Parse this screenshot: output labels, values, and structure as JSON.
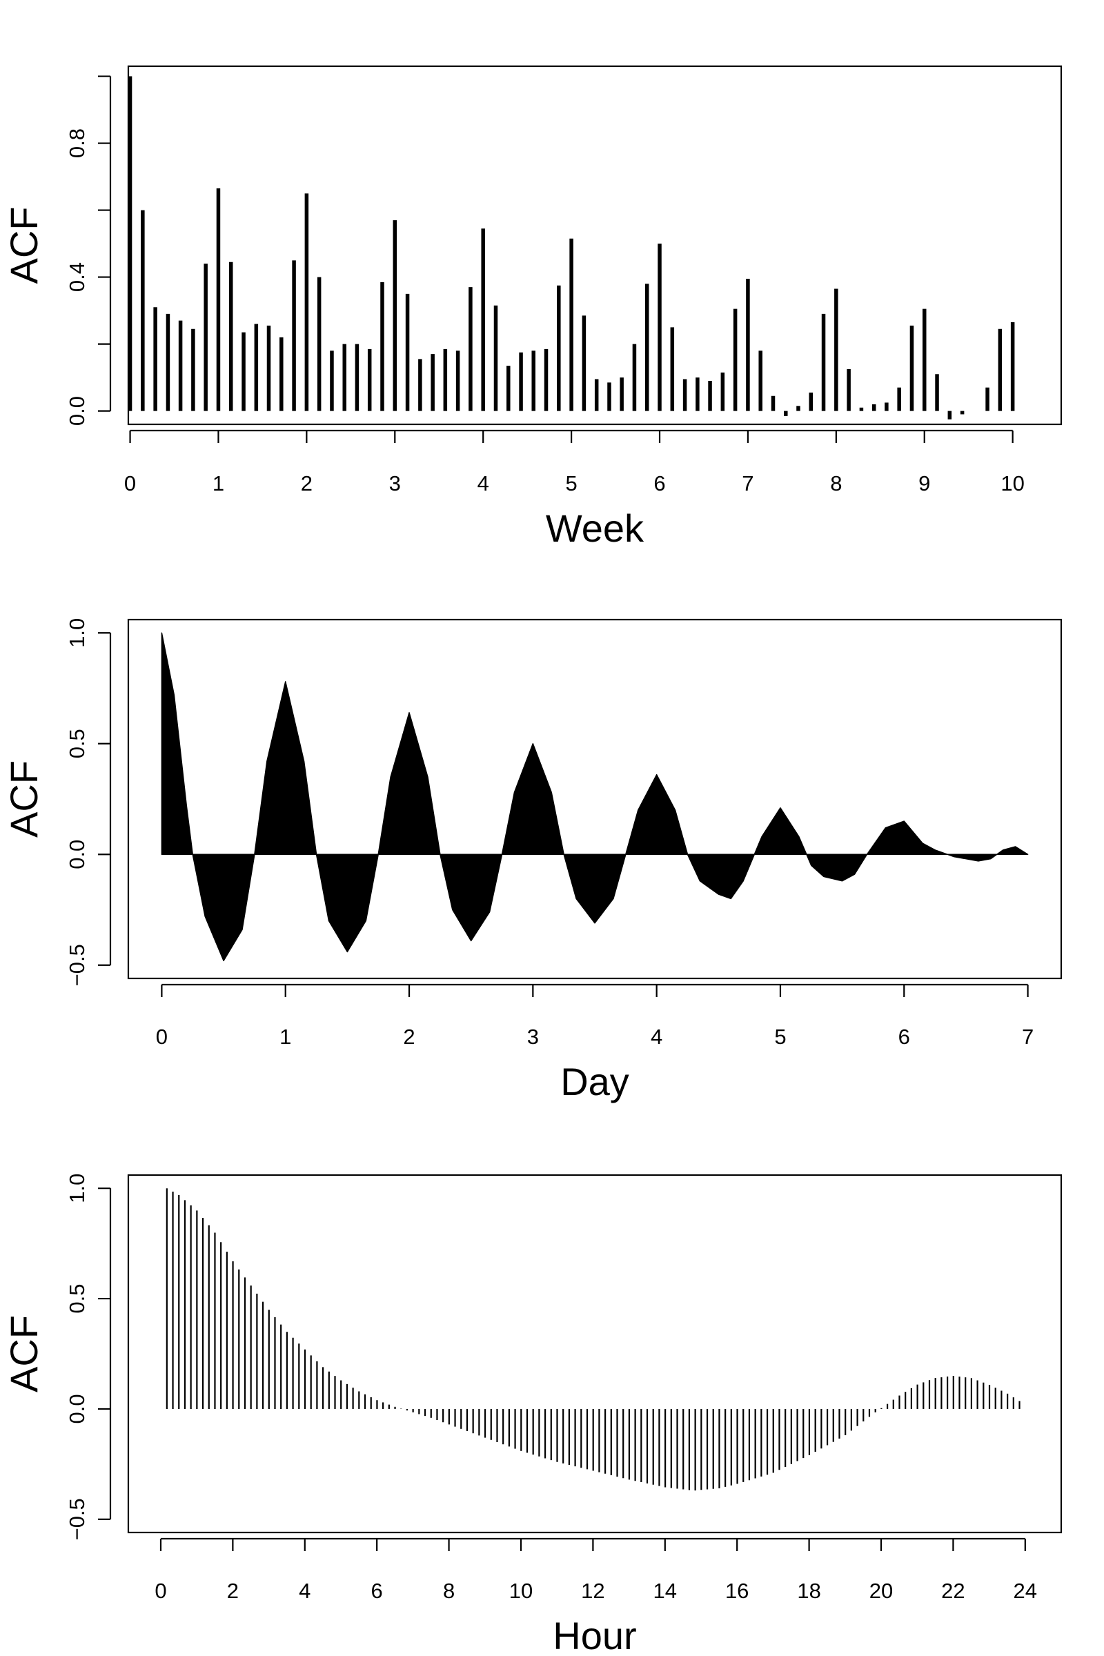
{
  "chart_data": [
    {
      "type": "bar",
      "style": "acf-spikes",
      "title": "",
      "xlabel": "Week",
      "ylabel": "ACF",
      "xlim": [
        -0.02,
        10.55
      ],
      "ylim": [
        -0.04,
        1.03
      ],
      "xticks": [
        0,
        1,
        2,
        3,
        4,
        5,
        6,
        7,
        8,
        9,
        10
      ],
      "xtick_labels": [
        "0",
        "1",
        "2",
        "3",
        "4",
        "5",
        "6",
        "7",
        "8",
        "9",
        "10"
      ],
      "yticks": [
        0.0,
        0.2,
        0.4,
        0.6,
        0.8,
        1.0
      ],
      "ytick_labels": [
        "0.0",
        "",
        "0.4",
        "",
        "0.8",
        ""
      ],
      "x": [
        0,
        0.143,
        0.286,
        0.429,
        0.571,
        0.714,
        0.857,
        1,
        1.143,
        1.286,
        1.429,
        1.571,
        1.714,
        1.857,
        2,
        2.143,
        2.286,
        2.429,
        2.571,
        2.714,
        2.857,
        3,
        3.143,
        3.286,
        3.429,
        3.571,
        3.714,
        3.857,
        4,
        4.143,
        4.286,
        4.429,
        4.571,
        4.714,
        4.857,
        5,
        5.143,
        5.286,
        5.429,
        5.571,
        5.714,
        5.857,
        6,
        6.143,
        6.286,
        6.429,
        6.571,
        6.714,
        6.857,
        7,
        7.143,
        7.286,
        7.429,
        7.571,
        7.714,
        7.857,
        8,
        8.143,
        8.286,
        8.429,
        8.571,
        8.714,
        8.857,
        9,
        9.143,
        9.286,
        9.429,
        9.571,
        9.714,
        9.857,
        10
      ],
      "values": [
        1.0,
        0.6,
        0.31,
        0.29,
        0.27,
        0.245,
        0.44,
        0.665,
        0.445,
        0.235,
        0.26,
        0.255,
        0.22,
        0.45,
        0.65,
        0.4,
        0.18,
        0.2,
        0.2,
        0.185,
        0.385,
        0.57,
        0.35,
        0.155,
        0.17,
        0.185,
        0.18,
        0.37,
        0.545,
        0.315,
        0.135,
        0.175,
        0.18,
        0.185,
        0.375,
        0.515,
        0.285,
        0.095,
        0.085,
        0.1,
        0.2,
        0.38,
        0.5,
        0.25,
        0.095,
        0.1,
        0.09,
        0.115,
        0.305,
        0.395,
        0.18,
        0.045,
        -0.015,
        0.015,
        0.055,
        0.29,
        0.365,
        0.125,
        0.01,
        0.02,
        0.025,
        0.07,
        0.255,
        0.305,
        0.11,
        -0.025,
        -0.01,
        0.0,
        0.07,
        0.245,
        0.265
      ]
    },
    {
      "type": "area",
      "style": "acf-filled",
      "title": "",
      "xlabel": "Day",
      "ylabel": "ACF",
      "xlim": [
        -0.27,
        7.27
      ],
      "ylim": [
        -0.56,
        1.06
      ],
      "xticks": [
        0,
        1,
        2,
        3,
        4,
        5,
        6,
        7
      ],
      "xtick_labels": [
        "0",
        "1",
        "2",
        "3",
        "4",
        "5",
        "6",
        "7"
      ],
      "yticks": [
        -0.5,
        0.0,
        0.5,
        1.0
      ],
      "ytick_labels": [
        "−0.5",
        "0.0",
        "0.5",
        "1.0"
      ],
      "x": [
        0,
        0.1,
        0.2,
        0.25,
        0.35,
        0.5,
        0.65,
        0.75,
        0.85,
        1.0,
        1.15,
        1.25,
        1.35,
        1.5,
        1.65,
        1.75,
        1.85,
        2.0,
        2.15,
        2.25,
        2.35,
        2.5,
        2.65,
        2.75,
        2.85,
        3.0,
        3.15,
        3.25,
        3.35,
        3.5,
        3.65,
        3.75,
        3.85,
        4.0,
        4.15,
        4.25,
        4.35,
        4.5,
        4.6,
        4.7,
        4.85,
        5.0,
        5.15,
        5.25,
        5.35,
        5.5,
        5.6,
        5.7,
        5.85,
        6.0,
        6.15,
        6.25,
        6.4,
        6.6,
        6.7,
        6.8,
        6.9,
        7.0
      ],
      "values": [
        1.0,
        0.72,
        0.22,
        0.0,
        -0.28,
        -0.48,
        -0.34,
        0.0,
        0.42,
        0.78,
        0.42,
        0.0,
        -0.3,
        -0.44,
        -0.3,
        0.0,
        0.35,
        0.64,
        0.35,
        0.0,
        -0.25,
        -0.39,
        -0.26,
        0.0,
        0.28,
        0.5,
        0.28,
        0.0,
        -0.2,
        -0.31,
        -0.2,
        0.0,
        0.2,
        0.36,
        0.2,
        0.0,
        -0.12,
        -0.18,
        -0.2,
        -0.12,
        0.08,
        0.21,
        0.08,
        -0.05,
        -0.1,
        -0.12,
        -0.09,
        0.0,
        0.12,
        0.15,
        0.05,
        0.02,
        -0.01,
        -0.03,
        -0.02,
        0.02,
        0.035,
        0.0
      ]
    },
    {
      "type": "bar",
      "style": "acf-thin-spikes",
      "title": "",
      "xlabel": "Hour",
      "ylabel": "ACF",
      "xlim": [
        -0.9,
        25.0
      ],
      "ylim": [
        -0.56,
        1.06
      ],
      "xticks": [
        0,
        2,
        4,
        6,
        8,
        10,
        12,
        14,
        16,
        18,
        20,
        22,
        24
      ],
      "xtick_labels": [
        "0",
        "2",
        "4",
        "6",
        "8",
        "10",
        "12",
        "14",
        "16",
        "18",
        "20",
        "22",
        "24"
      ],
      "yticks": [
        -0.5,
        0.0,
        0.5,
        1.0
      ],
      "ytick_labels": [
        "−0.5",
        "0.0",
        "0.5",
        "1.0"
      ],
      "spacing": 0.1667,
      "profile_x": [
        0.17,
        0.5,
        1.0,
        1.5,
        2.0,
        2.5,
        3.0,
        3.5,
        4.0,
        4.5,
        5.0,
        5.5,
        6.0,
        6.5,
        6.9,
        7.5,
        8.0,
        9.0,
        10.0,
        11.0,
        12.0,
        13.0,
        14.0,
        14.8,
        15.5,
        16.0,
        17.0,
        18.0,
        19.0,
        19.8,
        20.5,
        21.0,
        21.5,
        22.0,
        22.5,
        23.0,
        23.5,
        24.0
      ],
      "profile_values": [
        1.0,
        0.97,
        0.9,
        0.8,
        0.67,
        0.56,
        0.45,
        0.35,
        0.27,
        0.19,
        0.13,
        0.08,
        0.04,
        0.01,
        -0.01,
        -0.04,
        -0.07,
        -0.13,
        -0.19,
        -0.24,
        -0.28,
        -0.32,
        -0.355,
        -0.37,
        -0.36,
        -0.34,
        -0.29,
        -0.21,
        -0.12,
        -0.02,
        0.06,
        0.11,
        0.14,
        0.15,
        0.14,
        0.11,
        0.07,
        0.02
      ]
    }
  ]
}
